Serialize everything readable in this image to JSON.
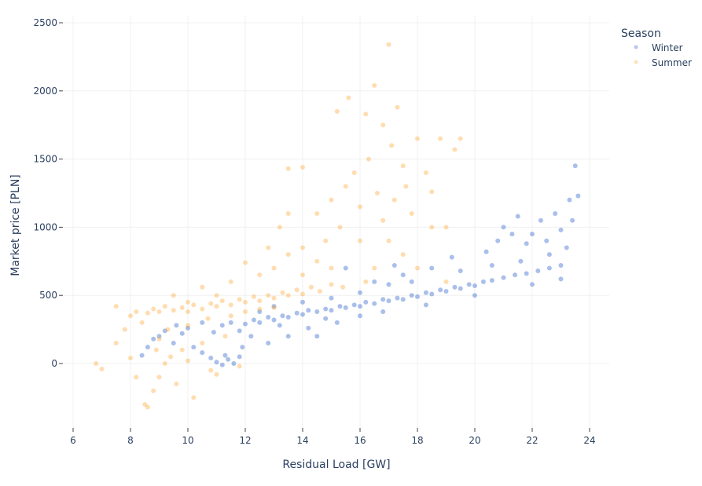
{
  "chart_data": {
    "type": "scatter",
    "title": "",
    "xlabel": "Residual Load [GW]",
    "ylabel": "Market price [PLN]",
    "xlim": [
      5.6,
      24.6
    ],
    "ylim": [
      -500,
      2550
    ],
    "xticks": [
      6,
      8,
      10,
      12,
      14,
      16,
      18,
      20,
      22,
      24
    ],
    "yticks": [
      0,
      500,
      1000,
      1500,
      2000,
      2500
    ],
    "grid": true,
    "legend": {
      "title": "Season",
      "placement": "top-right"
    },
    "series": [
      {
        "name": "Winter",
        "color": "#0b47c4",
        "points": [
          [
            8.4,
            60
          ],
          [
            8.6,
            120
          ],
          [
            8.8,
            180
          ],
          [
            9.0,
            200
          ],
          [
            9.2,
            240
          ],
          [
            9.5,
            150
          ],
          [
            9.8,
            220
          ],
          [
            10.0,
            260
          ],
          [
            10.2,
            120
          ],
          [
            10.5,
            80
          ],
          [
            10.8,
            40
          ],
          [
            11.0,
            10
          ],
          [
            11.2,
            -10
          ],
          [
            11.4,
            30
          ],
          [
            11.6,
            0
          ],
          [
            11.8,
            50
          ],
          [
            11.3,
            60
          ],
          [
            10.9,
            230
          ],
          [
            11.2,
            280
          ],
          [
            11.5,
            300
          ],
          [
            11.8,
            240
          ],
          [
            12.0,
            290
          ],
          [
            12.3,
            320
          ],
          [
            12.5,
            300
          ],
          [
            12.8,
            340
          ],
          [
            13.0,
            320
          ],
          [
            13.3,
            350
          ],
          [
            13.5,
            340
          ],
          [
            13.8,
            370
          ],
          [
            14.0,
            360
          ],
          [
            14.2,
            390
          ],
          [
            14.5,
            380
          ],
          [
            14.8,
            400
          ],
          [
            15.0,
            390
          ],
          [
            15.3,
            420
          ],
          [
            15.5,
            410
          ],
          [
            15.8,
            430
          ],
          [
            16.0,
            420
          ],
          [
            16.2,
            450
          ],
          [
            16.5,
            440
          ],
          [
            16.8,
            470
          ],
          [
            17.0,
            460
          ],
          [
            17.3,
            480
          ],
          [
            17.5,
            470
          ],
          [
            17.8,
            500
          ],
          [
            18.0,
            490
          ],
          [
            18.3,
            520
          ],
          [
            18.5,
            510
          ],
          [
            18.8,
            540
          ],
          [
            19.0,
            530
          ],
          [
            19.3,
            560
          ],
          [
            19.5,
            550
          ],
          [
            19.8,
            580
          ],
          [
            20.0,
            570
          ],
          [
            20.3,
            600
          ],
          [
            20.6,
            610
          ],
          [
            21.0,
            630
          ],
          [
            21.4,
            650
          ],
          [
            21.8,
            660
          ],
          [
            22.2,
            680
          ],
          [
            22.6,
            700
          ],
          [
            23.0,
            720
          ],
          [
            14.5,
            200
          ],
          [
            15.2,
            300
          ],
          [
            16.0,
            350
          ],
          [
            16.5,
            600
          ],
          [
            17.5,
            650
          ],
          [
            18.5,
            700
          ],
          [
            19.5,
            680
          ],
          [
            12.8,
            150
          ],
          [
            13.5,
            200
          ],
          [
            14.2,
            260
          ],
          [
            12.5,
            380
          ],
          [
            13.0,
            420
          ],
          [
            14.0,
            450
          ],
          [
            15.0,
            480
          ],
          [
            16.0,
            520
          ],
          [
            17.0,
            580
          ],
          [
            17.8,
            600
          ],
          [
            20.4,
            820
          ],
          [
            20.8,
            900
          ],
          [
            21.0,
            1000
          ],
          [
            21.3,
            950
          ],
          [
            21.5,
            1080
          ],
          [
            21.8,
            880
          ],
          [
            22.0,
            950
          ],
          [
            22.3,
            1050
          ],
          [
            22.5,
            900
          ],
          [
            22.8,
            1100
          ],
          [
            23.0,
            980
          ],
          [
            23.2,
            850
          ],
          [
            23.3,
            1200
          ],
          [
            23.5,
            1450
          ],
          [
            23.6,
            1230
          ],
          [
            23.4,
            1050
          ],
          [
            22.6,
            800
          ],
          [
            21.6,
            750
          ],
          [
            20.6,
            720
          ],
          [
            10.5,
            300
          ],
          [
            9.6,
            280
          ],
          [
            11.9,
            120
          ],
          [
            12.2,
            200
          ],
          [
            13.2,
            280
          ],
          [
            14.8,
            330
          ],
          [
            16.8,
            380
          ],
          [
            18.3,
            430
          ],
          [
            20.0,
            500
          ],
          [
            22.0,
            580
          ],
          [
            23.0,
            620
          ],
          [
            15.5,
            700
          ],
          [
            17.2,
            720
          ],
          [
            19.2,
            780
          ]
        ]
      },
      {
        "name": "Summer",
        "color": "#ff9f1c",
        "points": [
          [
            6.8,
            0
          ],
          [
            7.0,
            -40
          ],
          [
            7.5,
            150
          ],
          [
            7.8,
            250
          ],
          [
            8.0,
            350
          ],
          [
            8.2,
            380
          ],
          [
            8.4,
            300
          ],
          [
            8.6,
            370
          ],
          [
            8.8,
            400
          ],
          [
            9.0,
            380
          ],
          [
            9.2,
            420
          ],
          [
            9.5,
            390
          ],
          [
            9.8,
            410
          ],
          [
            10.0,
            380
          ],
          [
            10.2,
            430
          ],
          [
            10.5,
            400
          ],
          [
            10.8,
            440
          ],
          [
            11.0,
            420
          ],
          [
            11.2,
            460
          ],
          [
            11.5,
            430
          ],
          [
            11.8,
            470
          ],
          [
            12.0,
            450
          ],
          [
            12.3,
            490
          ],
          [
            12.5,
            460
          ],
          [
            12.8,
            500
          ],
          [
            13.0,
            480
          ],
          [
            13.3,
            520
          ],
          [
            13.5,
            500
          ],
          [
            13.8,
            540
          ],
          [
            14.0,
            510
          ],
          [
            14.3,
            560
          ],
          [
            14.6,
            530
          ],
          [
            15.0,
            580
          ],
          [
            15.4,
            560
          ],
          [
            8.2,
            -100
          ],
          [
            8.5,
            -300
          ],
          [
            8.6,
            -320
          ],
          [
            8.8,
            -200
          ],
          [
            9.0,
            -100
          ],
          [
            9.2,
            0
          ],
          [
            9.4,
            50
          ],
          [
            9.6,
            -150
          ],
          [
            9.8,
            100
          ],
          [
            10.0,
            20
          ],
          [
            10.2,
            -250
          ],
          [
            10.5,
            150
          ],
          [
            10.8,
            -50
          ],
          [
            11.0,
            -80
          ],
          [
            11.3,
            200
          ],
          [
            8.9,
            100
          ],
          [
            9.3,
            250
          ],
          [
            10.0,
            280
          ],
          [
            10.7,
            330
          ],
          [
            11.5,
            350
          ],
          [
            12.0,
            380
          ],
          [
            12.5,
            400
          ],
          [
            13.0,
            410
          ],
          [
            9.5,
            500
          ],
          [
            10.5,
            560
          ],
          [
            11.5,
            600
          ],
          [
            12.0,
            740
          ],
          [
            12.5,
            650
          ],
          [
            13.0,
            700
          ],
          [
            13.5,
            800
          ],
          [
            14.0,
            850
          ],
          [
            14.5,
            750
          ],
          [
            13.2,
            1000
          ],
          [
            13.5,
            1430
          ],
          [
            14.0,
            1440
          ],
          [
            14.5,
            1100
          ],
          [
            14.8,
            900
          ],
          [
            15.0,
            1200
          ],
          [
            15.3,
            1000
          ],
          [
            15.5,
            1300
          ],
          [
            15.8,
            1400
          ],
          [
            16.0,
            1150
          ],
          [
            16.2,
            1830
          ],
          [
            16.3,
            1500
          ],
          [
            16.5,
            2040
          ],
          [
            16.6,
            1250
          ],
          [
            16.8,
            1750
          ],
          [
            17.0,
            2340
          ],
          [
            17.1,
            1600
          ],
          [
            17.3,
            1880
          ],
          [
            17.5,
            1450
          ],
          [
            17.6,
            1300
          ],
          [
            17.8,
            1100
          ],
          [
            18.0,
            1650
          ],
          [
            18.3,
            1400
          ],
          [
            18.5,
            1260
          ],
          [
            18.8,
            1650
          ],
          [
            19.0,
            1000
          ],
          [
            19.3,
            1570
          ],
          [
            19.5,
            1650
          ],
          [
            15.6,
            1950
          ],
          [
            16.0,
            900
          ],
          [
            16.5,
            700
          ],
          [
            17.0,
            900
          ],
          [
            17.5,
            800
          ],
          [
            18.0,
            700
          ],
          [
            18.5,
            1000
          ],
          [
            19.0,
            600
          ],
          [
            15.0,
            700
          ],
          [
            14.0,
            650
          ],
          [
            16.2,
            600
          ],
          [
            13.5,
            1100
          ],
          [
            12.8,
            850
          ],
          [
            11.0,
            500
          ],
          [
            10.0,
            450
          ],
          [
            7.5,
            420
          ],
          [
            9.0,
            180
          ],
          [
            11.8,
            -20
          ],
          [
            8.0,
            40
          ],
          [
            16.8,
            1050
          ],
          [
            17.2,
            1200
          ],
          [
            15.2,
            1850
          ]
        ]
      }
    ]
  }
}
